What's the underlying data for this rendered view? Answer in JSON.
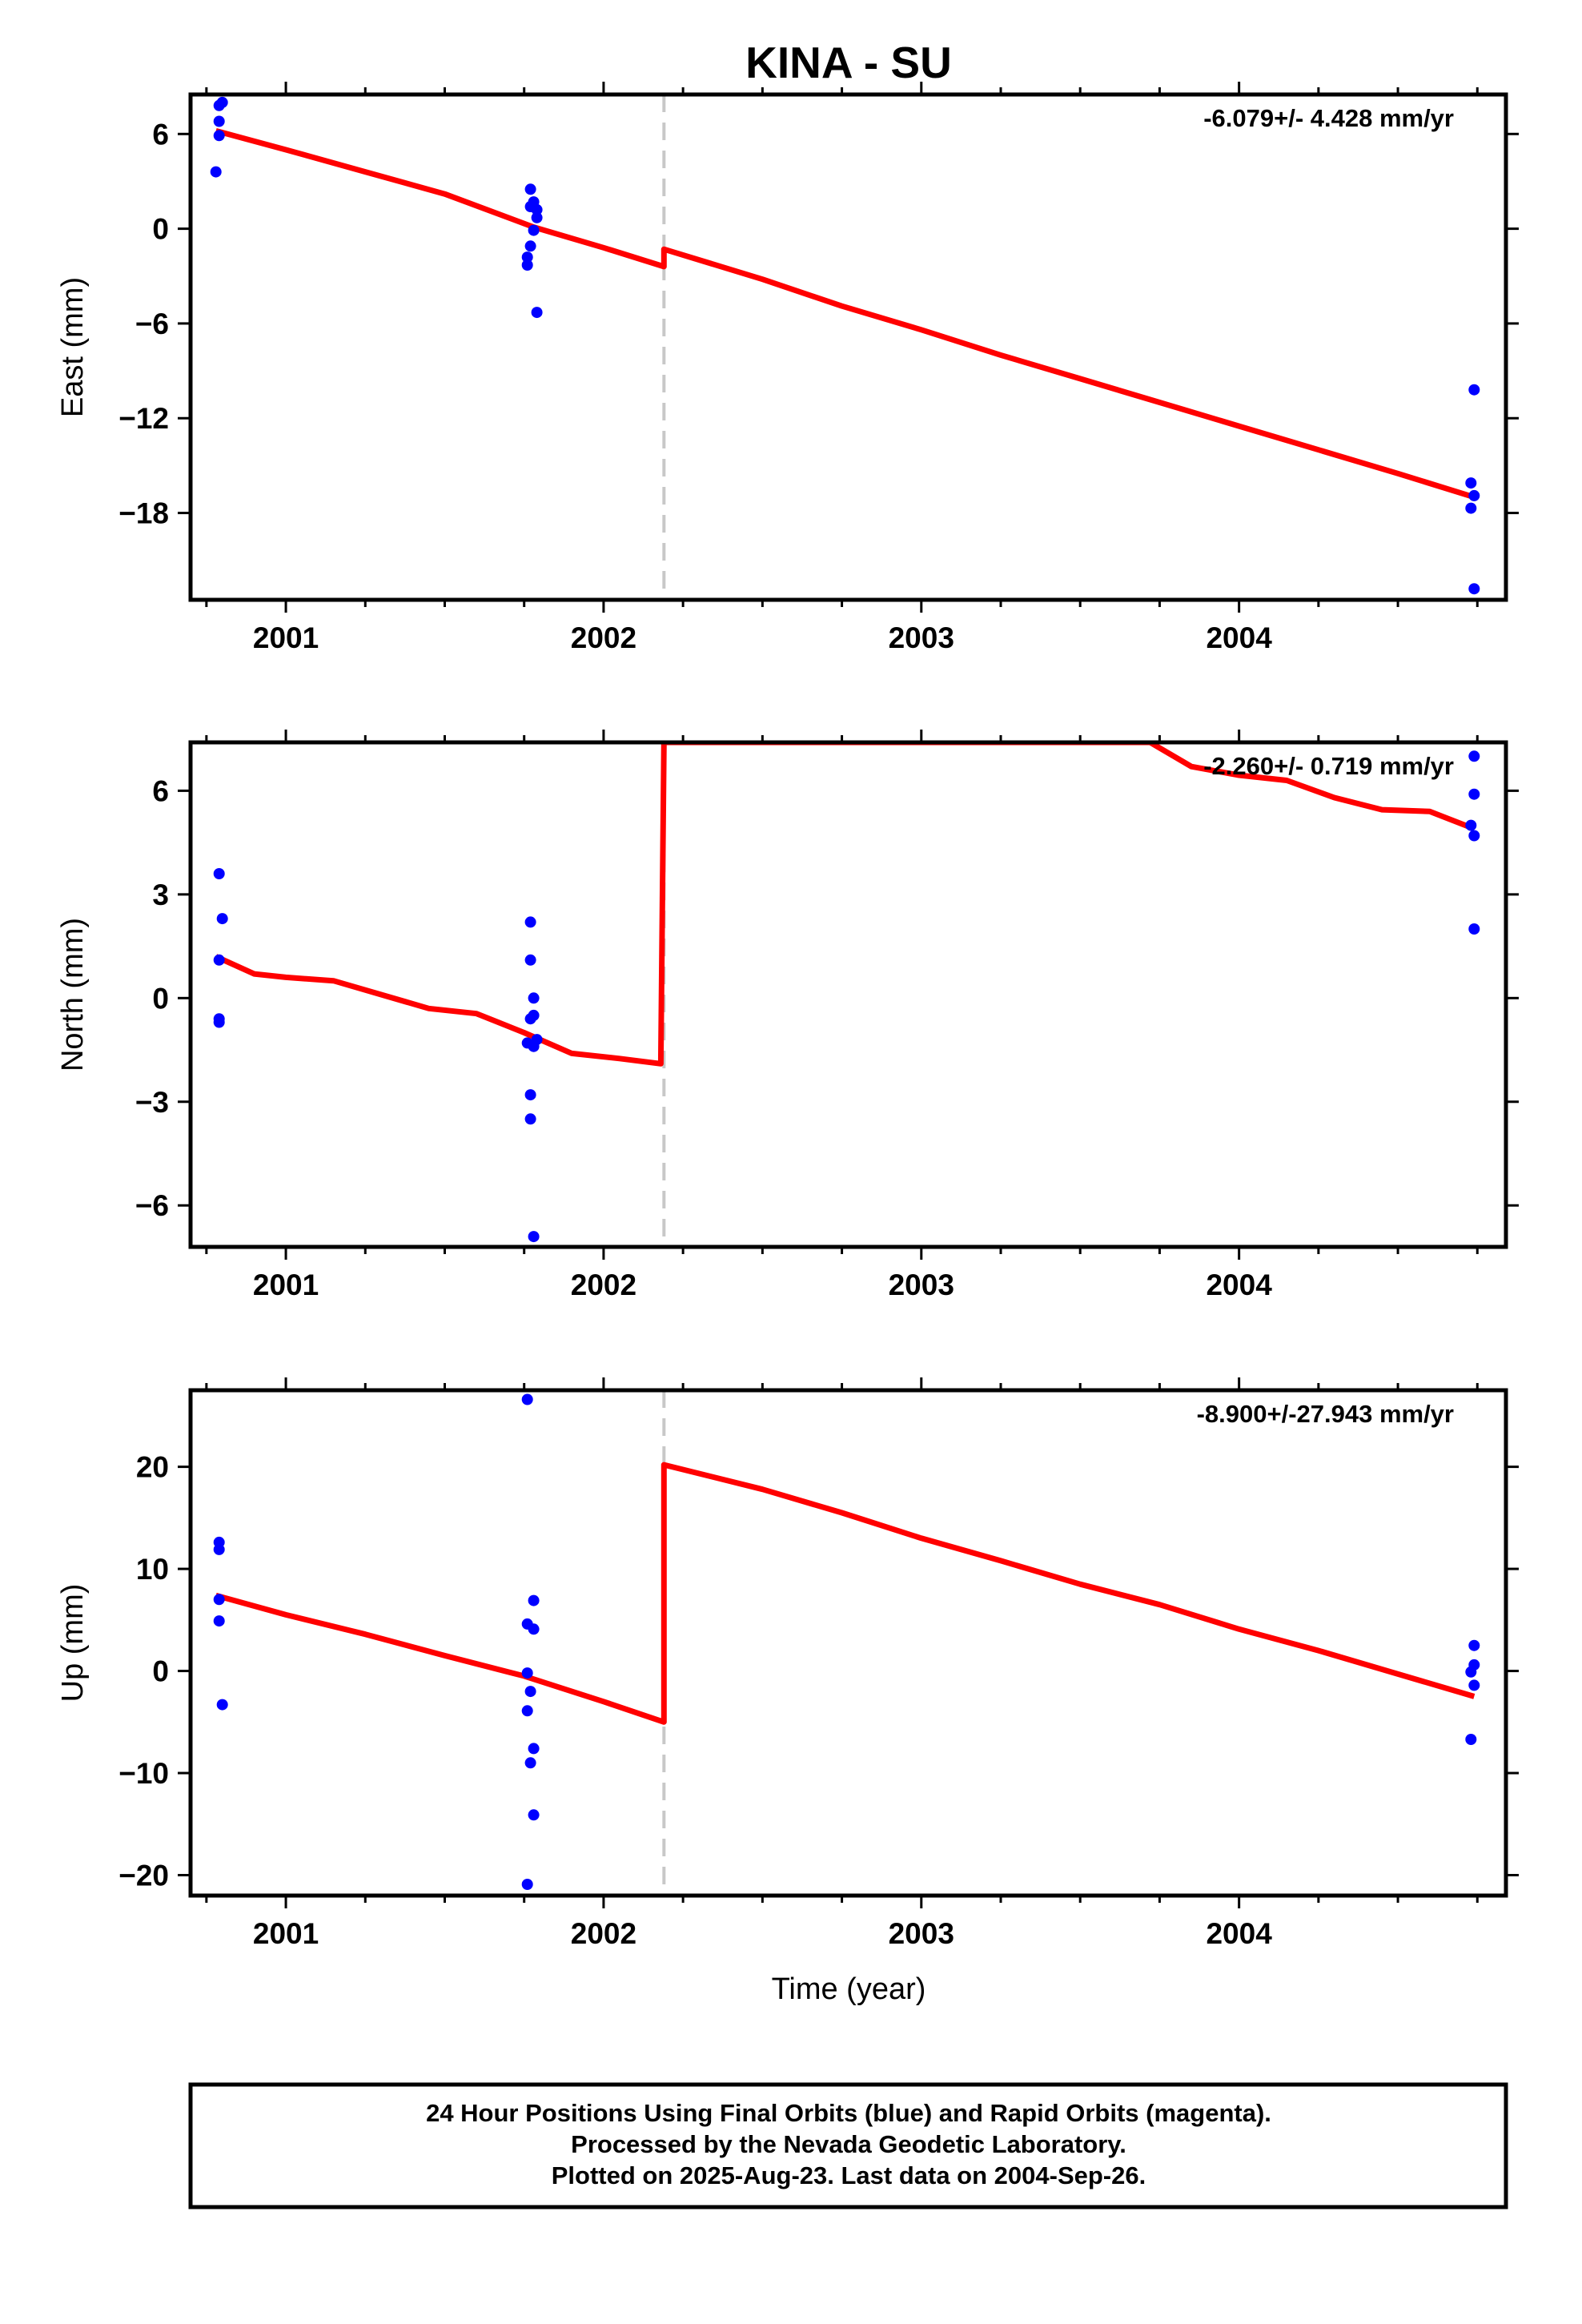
{
  "title": "KINA - SU",
  "xlabel": "Time (year)",
  "footer": {
    "lines": [
      "24 Hour Positions Using Final Orbits (blue) and Rapid Orbits (magenta).",
      "Processed by the Nevada Geodetic Laboratory.",
      "Plotted on 2025-Aug-23. Last data on 2004-Sep-26."
    ]
  },
  "colors": {
    "data": "#0000ff",
    "model": "#ff0000",
    "offset_line": "#c8c8c8",
    "frame": "#000000"
  },
  "chart_data": [
    {
      "type": "scatter",
      "ylabel": "East (mm)",
      "rate_label": "-6.079+/- 4.428 mm/yr",
      "xlim": [
        2000.7,
        2004.84
      ],
      "ylim": [
        -23.5,
        8.5
      ],
      "yticks": [
        6,
        0,
        -6,
        -12,
        -18
      ],
      "xticks": [
        2001,
        2002,
        2003,
        2004
      ],
      "offset_epoch": 2002.19,
      "grid": false,
      "points": [
        [
          2000.79,
          7.8
        ],
        [
          2000.8,
          8.0
        ],
        [
          2000.79,
          6.8
        ],
        [
          2000.79,
          5.9
        ],
        [
          2000.78,
          3.6
        ],
        [
          2001.77,
          2.5
        ],
        [
          2001.78,
          1.7
        ],
        [
          2001.77,
          1.4
        ],
        [
          2001.79,
          1.2
        ],
        [
          2001.79,
          0.7
        ],
        [
          2001.78,
          -0.1
        ],
        [
          2001.77,
          -1.1
        ],
        [
          2001.76,
          -1.8
        ],
        [
          2001.76,
          -2.3
        ],
        [
          2001.79,
          -5.3
        ],
        [
          2004.74,
          -10.2
        ],
        [
          2004.73,
          -16.1
        ],
        [
          2004.74,
          -16.9
        ],
        [
          2004.73,
          -17.7
        ],
        [
          2004.74,
          -22.8
        ]
      ],
      "model": [
        [
          2000.78,
          6.2
        ],
        [
          2001.0,
          5.0
        ],
        [
          2001.25,
          3.6
        ],
        [
          2001.5,
          2.2
        ],
        [
          2001.78,
          0.1
        ],
        [
          2002.0,
          -1.2
        ],
        [
          2002.19,
          -2.4
        ],
        [
          2002.19,
          -1.3
        ],
        [
          2002.5,
          -3.2
        ],
        [
          2002.75,
          -4.9
        ],
        [
          2003.0,
          -6.4
        ],
        [
          2003.25,
          -8.0
        ],
        [
          2003.5,
          -9.5
        ],
        [
          2003.75,
          -11.0
        ],
        [
          2004.0,
          -12.5
        ],
        [
          2004.25,
          -14.0
        ],
        [
          2004.5,
          -15.5
        ],
        [
          2004.74,
          -17.0
        ]
      ]
    },
    {
      "type": "scatter",
      "ylabel": "North (mm)",
      "rate_label": "-2.260+/- 0.719 mm/yr",
      "xlim": [
        2000.7,
        2004.84
      ],
      "ylim": [
        -7.2,
        7.4
      ],
      "yticks": [
        6,
        3,
        0,
        -3,
        -6
      ],
      "xticks": [
        2001,
        2002,
        2003,
        2004
      ],
      "offset_epoch": 2002.19,
      "grid": false,
      "points": [
        [
          2000.79,
          3.6
        ],
        [
          2000.8,
          2.3
        ],
        [
          2000.79,
          1.1
        ],
        [
          2000.79,
          -0.6
        ],
        [
          2000.79,
          -0.7
        ],
        [
          2001.77,
          2.2
        ],
        [
          2001.77,
          1.1
        ],
        [
          2001.78,
          0.0
        ],
        [
          2001.78,
          -0.5
        ],
        [
          2001.77,
          -0.6
        ],
        [
          2001.76,
          -1.3
        ],
        [
          2001.78,
          -1.4
        ],
        [
          2001.79,
          -1.2
        ],
        [
          2001.77,
          -2.8
        ],
        [
          2001.77,
          -3.5
        ],
        [
          2001.78,
          -6.9
        ],
        [
          2004.74,
          7.0
        ],
        [
          2004.74,
          5.9
        ],
        [
          2004.73,
          5.0
        ],
        [
          2004.74,
          4.7
        ],
        [
          2004.74,
          2.0
        ]
      ],
      "model": [
        [
          2000.78,
          1.2
        ],
        [
          2000.9,
          0.7
        ],
        [
          2001.0,
          0.6
        ],
        [
          2001.15,
          0.5
        ],
        [
          2001.3,
          0.1
        ],
        [
          2001.45,
          -0.3
        ],
        [
          2001.6,
          -0.45
        ],
        [
          2001.75,
          -1.0
        ],
        [
          2001.9,
          -1.6
        ],
        [
          2002.05,
          -1.75
        ],
        [
          2002.18,
          -1.9
        ],
        [
          2002.19,
          7.4
        ],
        [
          2003.72,
          7.4
        ],
        [
          2003.85,
          6.7
        ],
        [
          2004.0,
          6.45
        ],
        [
          2004.15,
          6.3
        ],
        [
          2004.3,
          5.8
        ],
        [
          2004.45,
          5.45
        ],
        [
          2004.6,
          5.4
        ],
        [
          2004.74,
          4.9
        ]
      ]
    },
    {
      "type": "scatter",
      "ylabel": "Up (mm)",
      "rate_label": "-8.900+/-27.943 mm/yr",
      "xlim": [
        2000.7,
        2004.84
      ],
      "ylim": [
        -22,
        27.5
      ],
      "yticks": [
        20,
        10,
        0,
        -10,
        -20
      ],
      "xticks": [
        2001,
        2002,
        2003,
        2004
      ],
      "offset_epoch": 2002.19,
      "grid": false,
      "points": [
        [
          2000.79,
          12.6
        ],
        [
          2000.79,
          11.9
        ],
        [
          2000.79,
          7.0
        ],
        [
          2000.79,
          4.9
        ],
        [
          2000.8,
          -3.3
        ],
        [
          2001.76,
          26.6
        ],
        [
          2001.78,
          6.9
        ],
        [
          2001.76,
          4.6
        ],
        [
          2001.78,
          4.1
        ],
        [
          2001.76,
          -0.2
        ],
        [
          2001.77,
          -2.0
        ],
        [
          2001.76,
          -3.9
        ],
        [
          2001.78,
          -7.6
        ],
        [
          2001.77,
          -9.0
        ],
        [
          2001.78,
          -14.1
        ],
        [
          2001.76,
          -20.9
        ],
        [
          2004.74,
          2.5
        ],
        [
          2004.74,
          0.6
        ],
        [
          2004.73,
          -0.1
        ],
        [
          2004.74,
          -1.4
        ],
        [
          2004.73,
          -6.7
        ]
      ],
      "model": [
        [
          2000.78,
          7.4
        ],
        [
          2001.0,
          5.5
        ],
        [
          2001.25,
          3.6
        ],
        [
          2001.5,
          1.5
        ],
        [
          2001.75,
          -0.5
        ],
        [
          2002.0,
          -3.0
        ],
        [
          2002.19,
          -5.0
        ],
        [
          2002.19,
          20.2
        ],
        [
          2002.5,
          17.8
        ],
        [
          2002.75,
          15.5
        ],
        [
          2003.0,
          13.0
        ],
        [
          2003.25,
          10.8
        ],
        [
          2003.5,
          8.5
        ],
        [
          2003.75,
          6.5
        ],
        [
          2004.0,
          4.1
        ],
        [
          2004.25,
          2.0
        ],
        [
          2004.5,
          -0.3
        ],
        [
          2004.74,
          -2.5
        ]
      ]
    }
  ]
}
